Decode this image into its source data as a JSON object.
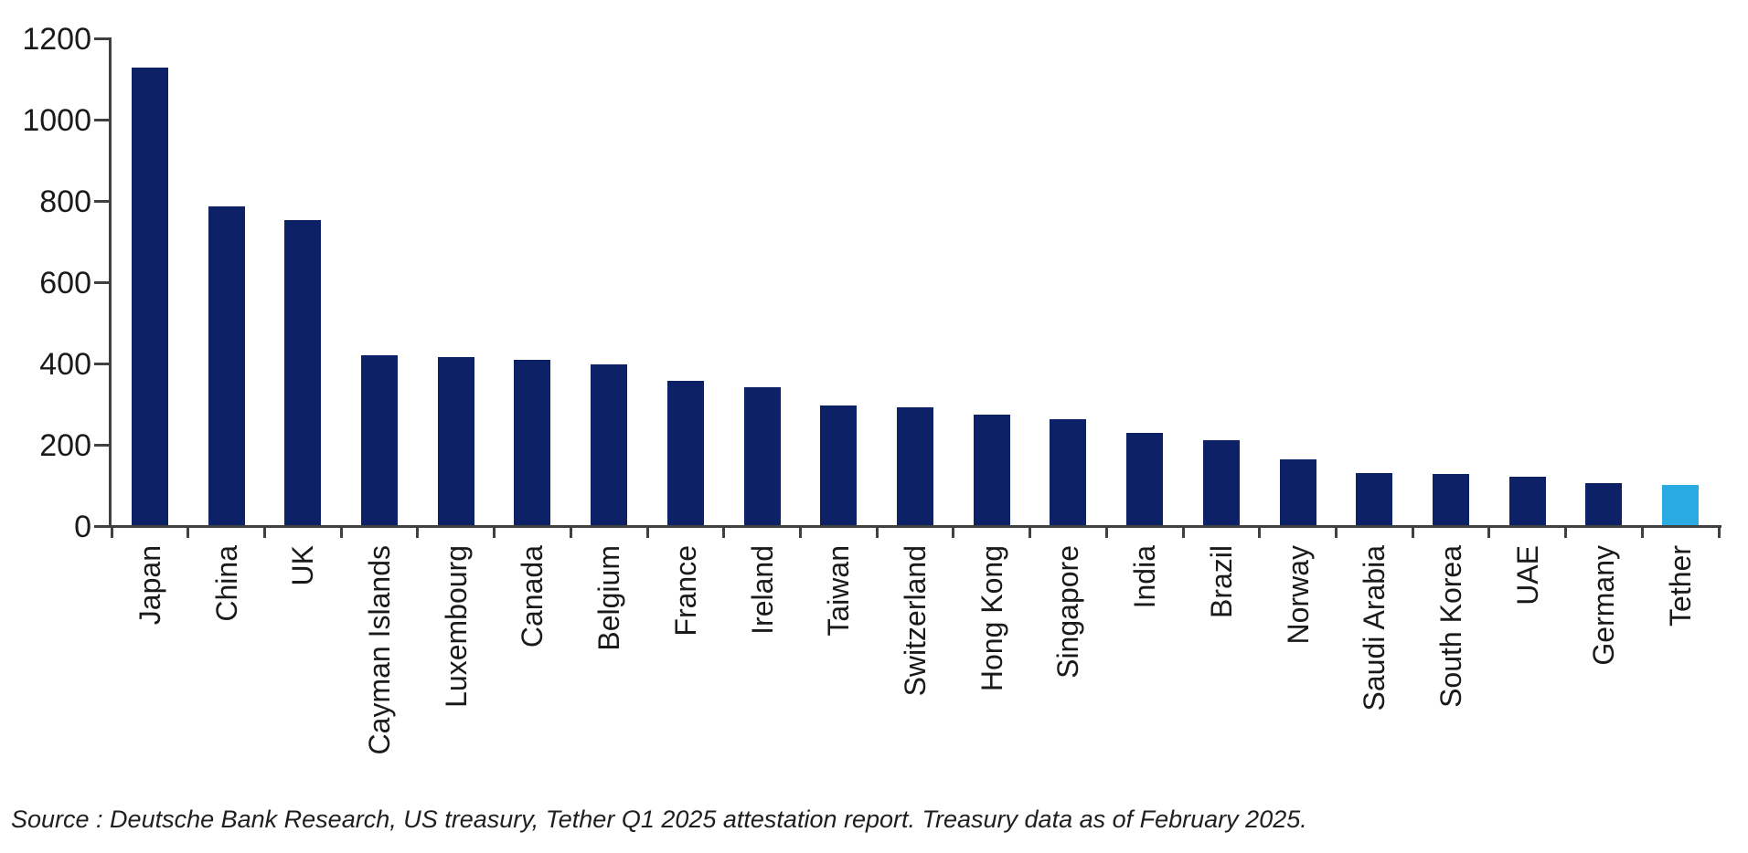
{
  "chart_data": {
    "type": "bar",
    "title": "",
    "xlabel": "",
    "ylabel": "",
    "categories": [
      "Japan",
      "China",
      "UK",
      "Cayman Islands",
      "Luxembourg",
      "Canada",
      "Belgium",
      "France",
      "Ireland",
      "Taiwan",
      "Switzerland",
      "Hong Kong",
      "Singapore",
      "India",
      "Brazil",
      "Norway",
      "Saudi Arabia",
      "South Korea",
      "UAE",
      "Germany",
      "Tether"
    ],
    "values": [
      1126,
      784,
      750,
      418,
      413,
      406,
      395,
      354,
      339,
      295,
      291,
      273,
      260,
      228,
      208,
      161,
      127,
      125,
      118,
      104,
      98
    ],
    "ylim": [
      0,
      1200
    ],
    "yticks": [
      0,
      200,
      400,
      600,
      800,
      1000,
      1200
    ],
    "grid": "off",
    "legend": "none",
    "bar_color": "#0d2167",
    "highlight_category": "Tether",
    "highlight_color": "#29abe2",
    "axis_color": "#404040",
    "text_color": "#1a1a1a",
    "bar_width_ratio": 0.48,
    "x_label_rotation": "bottom-to-top"
  },
  "source_note": "Source : Deutsche Bank Research, US treasury, Tether Q1 2025 attestation report. Treasury data as of February 2025."
}
